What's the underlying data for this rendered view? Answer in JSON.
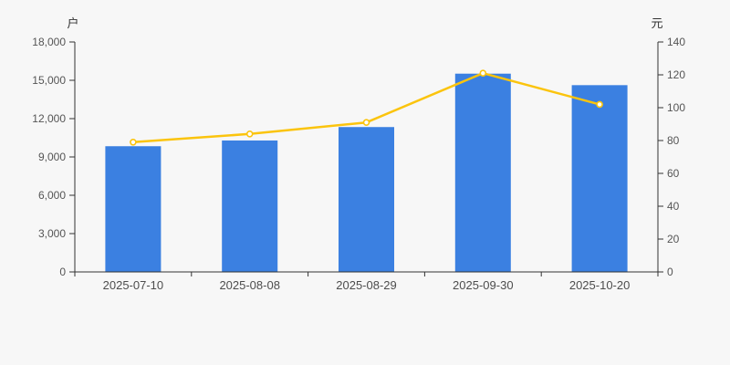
{
  "chart_data": {
    "type": "bar",
    "subtype": "bar+line dual axis",
    "title": "",
    "categories": [
      "2025-07-10",
      "2025-08-08",
      "2025-08-29",
      "2025-09-30",
      "2025-10-20"
    ],
    "series": [
      {
        "id": "bars",
        "type": "bar",
        "axis": "left",
        "values": [
          9840,
          10290,
          11340,
          15520,
          14620
        ],
        "color": "#3b80e1"
      },
      {
        "id": "line",
        "type": "line",
        "axis": "right",
        "values": [
          79,
          84,
          91,
          121,
          102
        ],
        "color": "#fbc40d",
        "marker_fill": "#ffffff"
      }
    ],
    "left_axis": {
      "label": "户",
      "min": 0,
      "max": 18000,
      "step": 3000,
      "comma_format": true
    },
    "right_axis": {
      "label": "元",
      "min": 0,
      "max": 140,
      "step": 20,
      "comma_format": false
    },
    "grid": false,
    "legend": null,
    "colors": {
      "background": "#f7f7f7",
      "axis_line": "#333333",
      "tick_label": "#555555",
      "category_label": "#4d4d4d"
    }
  }
}
